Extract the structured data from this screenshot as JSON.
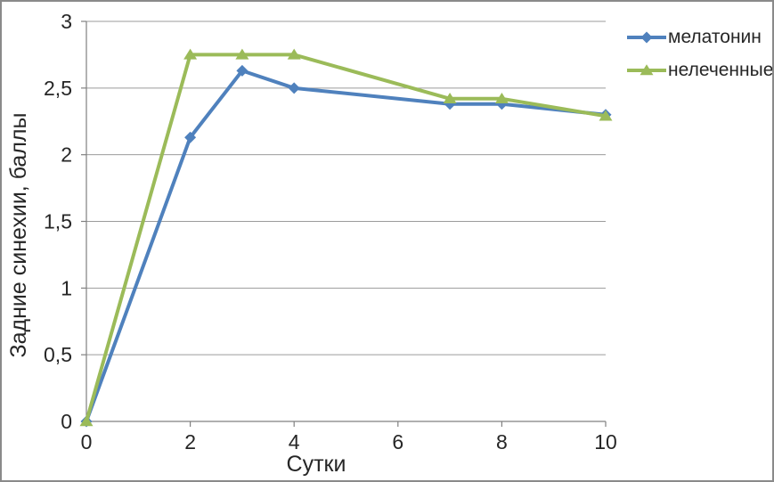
{
  "window": {
    "background": "#FFFFFF",
    "border_color": "#8A8A8A"
  },
  "chart_data": {
    "type": "line",
    "title": "",
    "x": [
      0,
      2,
      3,
      4,
      7,
      8,
      10
    ],
    "series": [
      {
        "name": "мелатонин",
        "color": "#4F81BD",
        "marker": "diamond",
        "values": [
          0,
          2.13,
          2.63,
          2.5,
          2.38,
          2.38,
          2.3
        ]
      },
      {
        "name": "нелеченные",
        "color": "#9BBB59",
        "marker": "triangle",
        "values": [
          0,
          2.75,
          2.75,
          2.75,
          2.42,
          2.42,
          2.29
        ]
      }
    ],
    "xlabel": "Сутки",
    "ylabel": "Задние синехии, баллы",
    "xlim": [
      0,
      10
    ],
    "ylim": [
      0,
      3
    ],
    "x_ticks": {
      "values": [
        0,
        2,
        4,
        6,
        8,
        10
      ],
      "labels": [
        "0",
        "2",
        "4",
        "6",
        "8",
        "10"
      ]
    },
    "y_ticks": {
      "values": [
        0,
        0.5,
        1,
        1.5,
        2,
        2.5,
        3
      ],
      "labels": [
        "0",
        "0,5",
        "1",
        "1,5",
        "2",
        "2,5",
        "3"
      ]
    },
    "grid": "horizontal-major",
    "legend_position": "top-right",
    "decimal_separator": ",",
    "colors": {
      "gridline": "#9B9B9B",
      "axis": "#808080",
      "tick_text": "#262626",
      "title_text": "#262626"
    }
  }
}
